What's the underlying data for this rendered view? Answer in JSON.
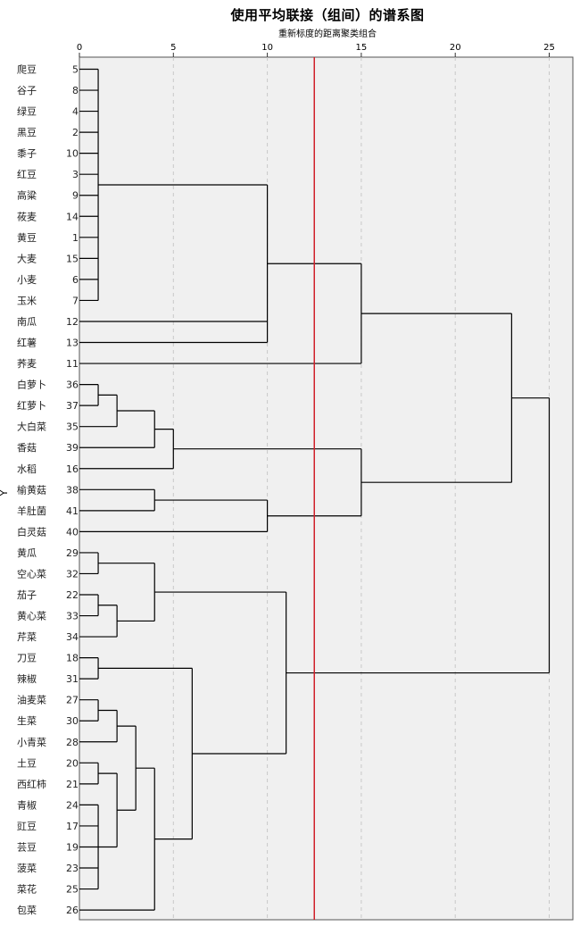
{
  "chart_data": {
    "type": "dendrogram",
    "title": "使用平均联接（组间）的谱系图",
    "subtitle": "重新标度的距离聚类组合",
    "ylabel": "Y",
    "xlim": [
      0,
      25
    ],
    "xticks": [
      0,
      5,
      10,
      15,
      20,
      25
    ],
    "grid": true,
    "cut_line": {
      "x": 12.5,
      "color": "#d0202a"
    },
    "leaves": [
      {
        "name": "爬豆",
        "id": "5"
      },
      {
        "name": "谷子",
        "id": "8"
      },
      {
        "name": "绿豆",
        "id": "4"
      },
      {
        "name": "黑豆",
        "id": "2"
      },
      {
        "name": "黍子",
        "id": "10"
      },
      {
        "name": "红豆",
        "id": "3"
      },
      {
        "name": "高粱",
        "id": "9"
      },
      {
        "name": "莜麦",
        "id": "14"
      },
      {
        "name": "黄豆",
        "id": "1"
      },
      {
        "name": "大麦",
        "id": "15"
      },
      {
        "name": "小麦",
        "id": "6"
      },
      {
        "name": "玉米",
        "id": "7"
      },
      {
        "name": "南瓜",
        "id": "12"
      },
      {
        "name": "红薯",
        "id": "13"
      },
      {
        "name": "荞麦",
        "id": "11"
      },
      {
        "name": "白萝卜",
        "id": "36"
      },
      {
        "name": "红萝卜",
        "id": "37"
      },
      {
        "name": "大白菜",
        "id": "35"
      },
      {
        "name": "香菇",
        "id": "39"
      },
      {
        "name": "水稻",
        "id": "16"
      },
      {
        "name": "榆黄菇",
        "id": "38"
      },
      {
        "name": "羊肚菌",
        "id": "41"
      },
      {
        "name": "白灵菇",
        "id": "40"
      },
      {
        "name": "黄瓜",
        "id": "29"
      },
      {
        "name": "空心菜",
        "id": "32"
      },
      {
        "name": "茄子",
        "id": "22"
      },
      {
        "name": "黄心菜",
        "id": "33"
      },
      {
        "name": "芹菜",
        "id": "34"
      },
      {
        "name": "刀豆",
        "id": "18"
      },
      {
        "name": "辣椒",
        "id": "31"
      },
      {
        "name": "油麦菜",
        "id": "27"
      },
      {
        "name": "生菜",
        "id": "30"
      },
      {
        "name": "小青菜",
        "id": "28"
      },
      {
        "name": "土豆",
        "id": "20"
      },
      {
        "name": "西红柿",
        "id": "21"
      },
      {
        "name": "青椒",
        "id": "24"
      },
      {
        "name": "豇豆",
        "id": "17"
      },
      {
        "name": "芸豆",
        "id": "19"
      },
      {
        "name": "菠菜",
        "id": "23"
      },
      {
        "name": "菜花",
        "id": "25"
      },
      {
        "name": "包菜",
        "id": "26"
      }
    ],
    "merges": [
      {
        "id": "G1",
        "children": [
          "5",
          "8",
          "4",
          "2",
          "10",
          "3",
          "9",
          "14",
          "1",
          "15",
          "6",
          "7"
        ],
        "height": 1
      },
      {
        "id": "G2",
        "children": [
          "G1",
          "12",
          "13"
        ],
        "height": 10
      },
      {
        "id": "G3",
        "children": [
          "G2",
          "11"
        ],
        "height": 15
      },
      {
        "id": "G4",
        "children": [
          "36",
          "37"
        ],
        "height": 1
      },
      {
        "id": "G5",
        "children": [
          "G4",
          "35"
        ],
        "height": 2
      },
      {
        "id": "G6",
        "children": [
          "G5",
          "39"
        ],
        "height": 4
      },
      {
        "id": "G7",
        "children": [
          "G6",
          "16"
        ],
        "height": 5
      },
      {
        "id": "G8",
        "children": [
          "38",
          "41"
        ],
        "height": 4
      },
      {
        "id": "G9",
        "children": [
          "G8",
          "40"
        ],
        "height": 10
      },
      {
        "id": "G10",
        "children": [
          "G7",
          "G9"
        ],
        "height": 15
      },
      {
        "id": "G11",
        "children": [
          "G3",
          "G10"
        ],
        "height": 23
      },
      {
        "id": "G12",
        "children": [
          "29",
          "32"
        ],
        "height": 1
      },
      {
        "id": "G13",
        "children": [
          "22",
          "33"
        ],
        "height": 1
      },
      {
        "id": "G14",
        "children": [
          "G13",
          "34"
        ],
        "height": 2
      },
      {
        "id": "G15",
        "children": [
          "G12",
          "G14"
        ],
        "height": 4
      },
      {
        "id": "G16",
        "children": [
          "18",
          "31"
        ],
        "height": 1
      },
      {
        "id": "G17",
        "children": [
          "27",
          "30"
        ],
        "height": 1
      },
      {
        "id": "G18",
        "children": [
          "G17",
          "28"
        ],
        "height": 2
      },
      {
        "id": "G19",
        "children": [
          "20",
          "21"
        ],
        "height": 1
      },
      {
        "id": "G20",
        "children": [
          "24",
          "17",
          "19",
          "23",
          "25"
        ],
        "height": 1
      },
      {
        "id": "G21",
        "children": [
          "G19",
          "G20"
        ],
        "height": 2
      },
      {
        "id": "G22",
        "children": [
          "G18",
          "G21"
        ],
        "height": 3
      },
      {
        "id": "G23",
        "children": [
          "G22",
          "26"
        ],
        "height": 4
      },
      {
        "id": "G24",
        "children": [
          "G16",
          "G23"
        ],
        "height": 6
      },
      {
        "id": "G25",
        "children": [
          "G15",
          "G24"
        ],
        "height": 11
      },
      {
        "id": "G26",
        "children": [
          "G11",
          "G25"
        ],
        "height": 25
      }
    ]
  }
}
